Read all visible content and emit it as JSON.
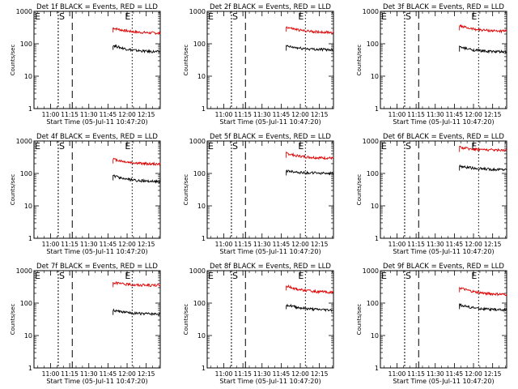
{
  "chart_data": [
    {
      "type": "line",
      "title": "Det 1f BLACK = Events, RED = LLD",
      "xlabel": "Start Time (05-Jul-11 10:47:20)",
      "ylabel": "Counts/sec",
      "yscale": "log",
      "ylim": [
        1,
        1000
      ],
      "x_ticks": [
        "11:00",
        "11:15",
        "11:30",
        "11:45",
        "12:00",
        "12:15"
      ],
      "markers": {
        "E_left": "10:49",
        "S": "11:06",
        "dash": "11:17",
        "E_right": "12:04"
      },
      "series": [
        {
          "name": "Events",
          "color": "#000000",
          "level_start": 90,
          "level_end": 55
        },
        {
          "name": "LLD",
          "color": "#e00000",
          "level_start": 310,
          "level_end": 210
        }
      ]
    },
    {
      "type": "line",
      "title": "Det 2f BLACK = Events, RED = LLD",
      "xlabel": "Start Time (05-Jul-11 10:47:20)",
      "ylabel": "Counts/sec",
      "yscale": "log",
      "ylim": [
        1,
        1000
      ],
      "x_ticks": [
        "11:00",
        "11:15",
        "11:30",
        "11:45",
        "12:00",
        "12:15"
      ],
      "markers": {
        "E_left": "10:49",
        "S": "11:06",
        "dash": "11:17",
        "E_right": "12:04"
      },
      "series": [
        {
          "name": "Events",
          "color": "#000000",
          "level_start": 85,
          "level_end": 65
        },
        {
          "name": "LLD",
          "color": "#e00000",
          "level_start": 330,
          "level_end": 220
        }
      ]
    },
    {
      "type": "line",
      "title": "Det 3f BLACK = Events, RED = LLD",
      "xlabel": "Start Time (05-Jul-11 10:47:20)",
      "ylabel": "Counts/sec",
      "yscale": "log",
      "ylim": [
        1,
        1000
      ],
      "x_ticks": [
        "11:00",
        "11:15",
        "11:30",
        "11:45",
        "12:00",
        "12:15"
      ],
      "markers": {
        "E_left": "10:49",
        "S": "11:06",
        "dash": "11:17",
        "E_right": "12:04"
      },
      "series": [
        {
          "name": "Events",
          "color": "#000000",
          "level_start": 80,
          "level_end": 55
        },
        {
          "name": "LLD",
          "color": "#e00000",
          "level_start": 360,
          "level_end": 240
        }
      ]
    },
    {
      "type": "line",
      "title": "Det 4f BLACK = Events, RED = LLD",
      "xlabel": "Start Time (05-Jul-11 10:47:20)",
      "ylabel": "Counts/sec",
      "yscale": "log",
      "ylim": [
        1,
        1000
      ],
      "x_ticks": [
        "11:00",
        "11:15",
        "11:30",
        "11:45",
        "12:00",
        "12:15"
      ],
      "markers": {
        "E_left": "10:49",
        "S": "11:06",
        "dash": "11:17",
        "E_right": "12:04"
      },
      "series": [
        {
          "name": "Events",
          "color": "#000000",
          "level_start": 85,
          "level_end": 55
        },
        {
          "name": "LLD",
          "color": "#e00000",
          "level_start": 280,
          "level_end": 190
        }
      ]
    },
    {
      "type": "line",
      "title": "Det 5f BLACK = Events, RED = LLD",
      "xlabel": "Start Time (05-Jul-11 10:47:20)",
      "ylabel": "Counts/sec",
      "yscale": "log",
      "ylim": [
        1,
        1000
      ],
      "x_ticks": [
        "11:00",
        "11:15",
        "11:30",
        "11:45",
        "12:00",
        "12:15"
      ],
      "markers": {
        "E_left": "10:49",
        "S": "11:06",
        "dash": "11:17",
        "E_right": "12:04"
      },
      "series": [
        {
          "name": "Events",
          "color": "#000000",
          "level_start": 120,
          "level_end": 100
        },
        {
          "name": "LLD",
          "color": "#e00000",
          "level_start": 420,
          "level_end": 290
        }
      ]
    },
    {
      "type": "line",
      "title": "Det 6f BLACK = Events, RED = LLD",
      "xlabel": "Start Time (05-Jul-11 10:47:20)",
      "ylabel": "Counts/sec",
      "yscale": "log",
      "ylim": [
        1,
        1000
      ],
      "x_ticks": [
        "11:00",
        "11:15",
        "11:30",
        "11:45",
        "12:00",
        "12:15"
      ],
      "markers": {
        "E_left": "10:49",
        "S": "11:06",
        "dash": "11:17",
        "E_right": "12:04"
      },
      "series": [
        {
          "name": "Events",
          "color": "#000000",
          "level_start": 170,
          "level_end": 130
        },
        {
          "name": "LLD",
          "color": "#e00000",
          "level_start": 640,
          "level_end": 520
        }
      ]
    },
    {
      "type": "line",
      "title": "Det 7f BLACK = Events, RED = LLD",
      "xlabel": "Start Time (05-Jul-11 10:47:20)",
      "ylabel": "Counts/sec",
      "yscale": "log",
      "ylim": [
        1,
        1000
      ],
      "x_ticks": [
        "11:00",
        "11:15",
        "11:30",
        "11:45",
        "12:00",
        "12:15"
      ],
      "markers": {
        "E_left": "10:49",
        "S": "11:06",
        "dash": "11:17",
        "E_right": "12:04"
      },
      "series": [
        {
          "name": "Events",
          "color": "#000000",
          "level_start": 60,
          "level_end": 45
        },
        {
          "name": "LLD",
          "color": "#e00000",
          "level_start": 430,
          "level_end": 350
        }
      ]
    },
    {
      "type": "line",
      "title": "Det 8f BLACK = Events, RED = LLD",
      "xlabel": "Start Time (05-Jul-11 10:47:20)",
      "ylabel": "Counts/sec",
      "yscale": "log",
      "ylim": [
        1,
        1000
      ],
      "x_ticks": [
        "11:00",
        "11:15",
        "11:30",
        "11:45",
        "12:00",
        "12:15"
      ],
      "markers": {
        "E_left": "10:49",
        "S": "11:06",
        "dash": "11:17",
        "E_right": "12:04"
      },
      "series": [
        {
          "name": "Events",
          "color": "#000000",
          "level_start": 90,
          "level_end": 60
        },
        {
          "name": "LLD",
          "color": "#e00000",
          "level_start": 340,
          "level_end": 210
        }
      ]
    },
    {
      "type": "line",
      "title": "Det 9f BLACK = Events, RED = LLD",
      "xlabel": "Start Time (05-Jul-11 10:47:20)",
      "ylabel": "Counts/sec",
      "yscale": "log",
      "ylim": [
        1,
        1000
      ],
      "x_ticks": [
        "11:00",
        "11:15",
        "11:30",
        "11:45",
        "12:00",
        "12:15"
      ],
      "markers": {
        "E_left": "10:49",
        "S": "11:06",
        "dash": "11:17",
        "E_right": "12:04"
      },
      "series": [
        {
          "name": "Events",
          "color": "#000000",
          "level_start": 90,
          "level_end": 60
        },
        {
          "name": "LLD",
          "color": "#e00000",
          "level_start": 300,
          "level_end": 180
        }
      ]
    }
  ],
  "shared": {
    "x_range": [
      "10:47",
      "12:26"
    ],
    "series_start": "11:49",
    "series_end": "12:26",
    "y_tick_labels": [
      "1",
      "10",
      "100",
      "1000"
    ],
    "marker_labels": {
      "E": "E",
      "S": "S"
    }
  }
}
